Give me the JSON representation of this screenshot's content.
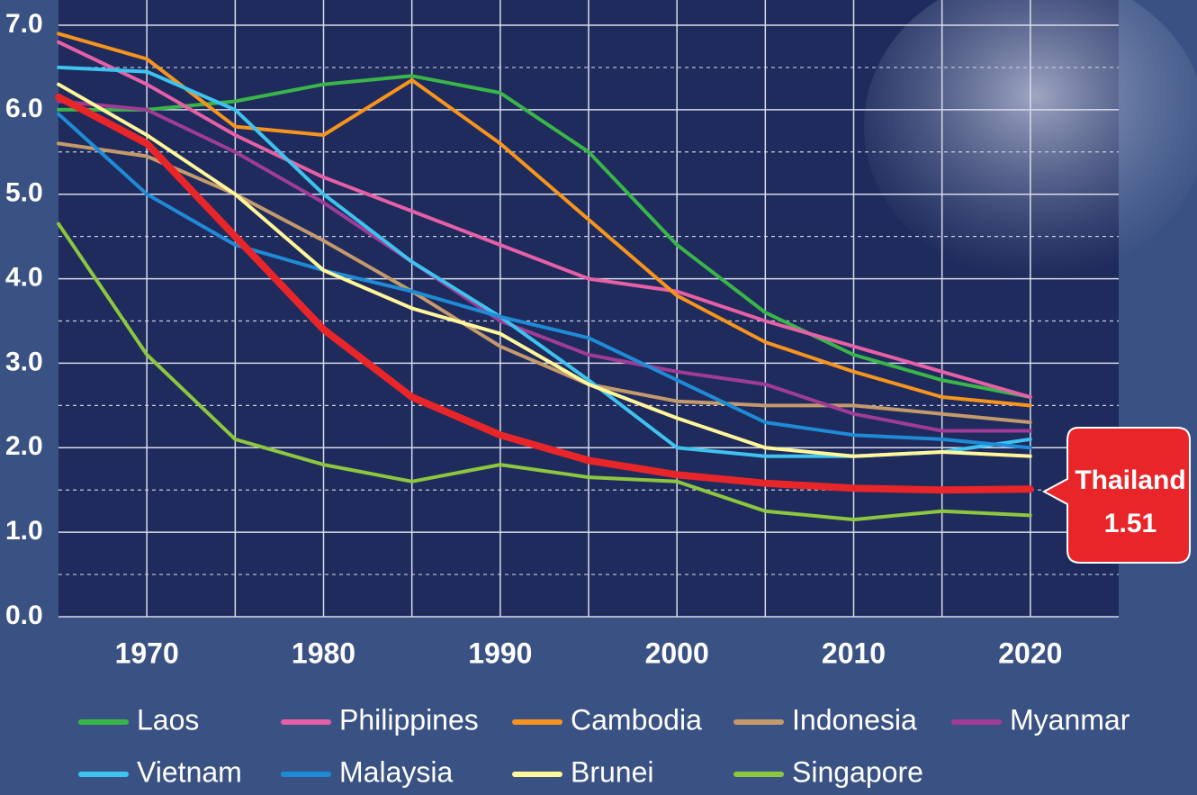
{
  "chart_data": {
    "type": "line",
    "x": [
      1965,
      1970,
      1975,
      1980,
      1985,
      1990,
      1995,
      2000,
      2005,
      2010,
      2015,
      2020
    ],
    "xlim": [
      1965,
      2025
    ],
    "xticks": [
      1970,
      1980,
      1990,
      2000,
      2010,
      2020
    ],
    "x_minor_ticks": [
      1975,
      1985,
      1995,
      2005,
      2015
    ],
    "ylim": [
      0,
      7
    ],
    "yticks": [
      {
        "value": 0,
        "label": "0.0"
      },
      {
        "value": 1,
        "label": "1.0"
      },
      {
        "value": 2,
        "label": "2.0"
      },
      {
        "value": 3,
        "label": "3.0"
      },
      {
        "value": 4,
        "label": "4.0"
      },
      {
        "value": 5,
        "label": "5.0"
      },
      {
        "value": 6,
        "label": "6.0"
      },
      {
        "value": 7,
        "label": "7.0"
      }
    ],
    "y_minor_ticks": [
      0.5,
      1.5,
      2.5,
      3.5,
      4.5,
      5.5,
      6.5
    ],
    "grid": true,
    "series": [
      {
        "name": "Laos",
        "color": "#3ab54a",
        "values": [
          6.0,
          6.0,
          6.1,
          6.3,
          6.4,
          6.2,
          5.5,
          4.4,
          3.6,
          3.1,
          2.8,
          2.6
        ]
      },
      {
        "name": "Philippines",
        "color": "#e75fa6",
        "values": [
          6.8,
          6.3,
          5.7,
          5.2,
          4.8,
          4.4,
          4.0,
          3.85,
          3.5,
          3.2,
          2.9,
          2.6
        ]
      },
      {
        "name": "Cambodia",
        "color": "#f7941d",
        "values": [
          6.9,
          6.6,
          5.8,
          5.7,
          6.35,
          5.6,
          4.7,
          3.8,
          3.25,
          2.9,
          2.6,
          2.5
        ]
      },
      {
        "name": "Indonesia",
        "color": "#c49a6c",
        "values": [
          5.6,
          5.45,
          5.0,
          4.45,
          3.85,
          3.2,
          2.75,
          2.55,
          2.5,
          2.5,
          2.4,
          2.3
        ]
      },
      {
        "name": "Myanmar",
        "color": "#a03c96",
        "values": [
          6.1,
          6.0,
          5.5,
          4.9,
          4.2,
          3.5,
          3.1,
          2.9,
          2.75,
          2.4,
          2.2,
          2.2
        ]
      },
      {
        "name": "Vietnam",
        "color": "#3ec3f0",
        "values": [
          6.5,
          6.45,
          6.0,
          5.0,
          4.2,
          3.55,
          2.8,
          2.0,
          1.9,
          1.9,
          1.95,
          2.1
        ]
      },
      {
        "name": "Malaysia",
        "color": "#1f8bd6",
        "values": [
          5.95,
          5.0,
          4.4,
          4.1,
          3.85,
          3.55,
          3.3,
          2.8,
          2.3,
          2.15,
          2.1,
          2.0
        ]
      },
      {
        "name": "Brunei",
        "color": "#fff799",
        "values": [
          6.3,
          5.7,
          5.0,
          4.1,
          3.65,
          3.35,
          2.75,
          2.35,
          2.0,
          1.9,
          1.95,
          1.9
        ]
      },
      {
        "name": "Singapore",
        "color": "#8dc63f",
        "values": [
          4.65,
          3.1,
          2.1,
          1.8,
          1.6,
          1.8,
          1.65,
          1.6,
          1.25,
          1.15,
          1.25,
          1.2
        ]
      }
    ],
    "highlight": {
      "name": "Thailand",
      "color": "#e8262a",
      "values": [
        6.15,
        5.6,
        4.5,
        3.4,
        2.6,
        2.15,
        1.85,
        1.68,
        1.58,
        1.52,
        1.5,
        1.51
      ]
    }
  }
}
